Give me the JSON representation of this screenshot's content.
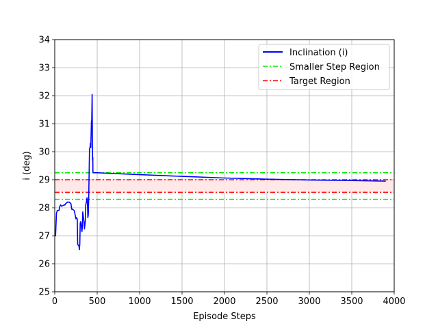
{
  "chart_data": {
    "type": "line",
    "title": "",
    "xlabel": "Episode Steps",
    "ylabel": "i (deg)",
    "xlim": [
      0,
      4000
    ],
    "ylim": [
      25,
      34
    ],
    "xticks": [
      0,
      500,
      1000,
      1500,
      2000,
      2500,
      3000,
      3500,
      4000
    ],
    "yticks": [
      25,
      26,
      27,
      28,
      29,
      30,
      31,
      32,
      33,
      34
    ],
    "grid": true,
    "legend_position": "top-right",
    "colors": {
      "inclination": "#0000ff",
      "smaller_step": "#00ee00",
      "target": "#ff0000",
      "target_fill": "#ffe6e6",
      "grid": "#b0b0b0"
    },
    "series": [
      {
        "name": "Inclination (i)",
        "style": "solid",
        "x": [
          0,
          10,
          20,
          30,
          50,
          60,
          70,
          80,
          110,
          120,
          130,
          150,
          170,
          190,
          200,
          210,
          230,
          250,
          255,
          265,
          270,
          280,
          285,
          290,
          295,
          300,
          305,
          310,
          320,
          325,
          330,
          340,
          345,
          350,
          360,
          365,
          375,
          380,
          385,
          390,
          395,
          400,
          405,
          410,
          415,
          420,
          425,
          430,
          432,
          435,
          438,
          440,
          442,
          444,
          446,
          448,
          450,
          452,
          455,
          460,
          500,
          700,
          1000,
          1500,
          2000,
          2500,
          3000,
          3500,
          3900
        ],
        "y": [
          27.0,
          27.0,
          27.8,
          27.9,
          27.9,
          28.05,
          28.1,
          28.05,
          28.1,
          28.1,
          28.15,
          28.2,
          28.2,
          28.15,
          27.95,
          27.95,
          27.9,
          27.6,
          27.65,
          27.6,
          26.7,
          26.65,
          26.65,
          26.5,
          26.7,
          27.45,
          27.5,
          27.45,
          27.15,
          27.3,
          27.85,
          27.6,
          27.5,
          27.25,
          27.5,
          28.1,
          28.25,
          28.35,
          28.25,
          27.65,
          27.75,
          28.3,
          29.2,
          30.1,
          30.15,
          30.3,
          30.15,
          30.8,
          31.1,
          30.9,
          31.5,
          32.05,
          31.3,
          30.3,
          29.7,
          29.8,
          29.3,
          29.25,
          29.25,
          29.25,
          29.25,
          29.22,
          29.18,
          29.12,
          29.06,
          29.02,
          28.99,
          28.97,
          28.95
        ]
      },
      {
        "name": "Smaller Step Region",
        "style": "dashdot",
        "values": [
          29.25,
          28.3
        ]
      },
      {
        "name": "Target Region",
        "style": "dashdot",
        "values": [
          29.0,
          28.55
        ]
      }
    ]
  }
}
